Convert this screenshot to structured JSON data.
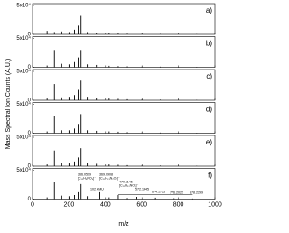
{
  "chart_data": {
    "type": "stem",
    "ylabel": "Mass Spectral Ion Counts (A.U.)",
    "xlabel": "m/z",
    "xlim": [
      0,
      1000
    ],
    "xticks": [
      0,
      200,
      400,
      600,
      800,
      1000
    ],
    "ylim": [
      0,
      50000
    ],
    "yticks": [
      0,
      {
        "value": 50000,
        "label": "5x10⁴"
      }
    ],
    "color": "#000000",
    "panels": [
      {
        "label": "a)",
        "x": [
          80,
          120,
          160,
          200,
          230,
          250,
          266,
          300,
          350,
          420,
          470,
          520,
          600,
          700,
          800,
          900
        ],
        "values": [
          6000,
          4000,
          5000,
          4000,
          8000,
          15000,
          32000,
          4000,
          3000,
          2000,
          1500,
          1200,
          1000,
          800,
          600,
          500
        ]
      },
      {
        "label": "b)",
        "x": [
          80,
          120,
          160,
          200,
          230,
          250,
          266,
          300,
          350,
          420,
          470,
          520,
          600,
          700,
          800,
          900
        ],
        "values": [
          3000,
          30000,
          6000,
          5000,
          9000,
          17000,
          30000,
          5000,
          4000,
          2500,
          2000,
          1500,
          1200,
          1000,
          800,
          600
        ]
      },
      {
        "label": "c)",
        "x": [
          80,
          120,
          160,
          200,
          230,
          250,
          266,
          300,
          350,
          420,
          470,
          520,
          600,
          700,
          800,
          900
        ],
        "values": [
          3000,
          28000,
          5000,
          6000,
          9000,
          18000,
          34000,
          6000,
          4000,
          3000,
          2500,
          1800,
          1400,
          1000,
          800,
          600
        ]
      },
      {
        "label": "d)",
        "x": [
          80,
          120,
          160,
          200,
          230,
          250,
          266,
          300,
          350,
          420,
          470,
          520,
          600,
          700,
          800,
          900
        ],
        "values": [
          3000,
          29000,
          5000,
          5000,
          8000,
          16000,
          33000,
          5000,
          4000,
          3000,
          2500,
          1800,
          1300,
          1000,
          800,
          600
        ]
      },
      {
        "label": "e)",
        "x": [
          80,
          120,
          160,
          200,
          230,
          250,
          266,
          300,
          350,
          420,
          470,
          520,
          600,
          700,
          800,
          900
        ],
        "values": [
          3000,
          27000,
          5000,
          5000,
          8000,
          15000,
          31000,
          5000,
          4000,
          3000,
          2500,
          1800,
          1300,
          1000,
          800,
          600
        ]
      },
      {
        "label": "f)",
        "x": [
          80,
          120,
          160,
          200,
          230,
          250,
          266,
          300,
          369,
          420,
          470,
          520,
          572,
          674,
          776,
          878
        ],
        "values": [
          3000,
          30000,
          6000,
          5000,
          7000,
          12000,
          26000,
          5000,
          12000,
          3000,
          7000,
          2000,
          4000,
          2500,
          1500,
          1000
        ],
        "annotations": [
          "266.0599",
          "[C₁₅H₈NO₄]⁻",
          "369.0908",
          "[C₂₂H₁₃N₂O₂]⁻",
          "470.1146",
          "[C₂₁H₂₀NO₆]⁻",
          "572.1445",
          "674.1723",
          "776.2022",
          "878.2299",
          "102 AMU"
        ]
      }
    ]
  }
}
